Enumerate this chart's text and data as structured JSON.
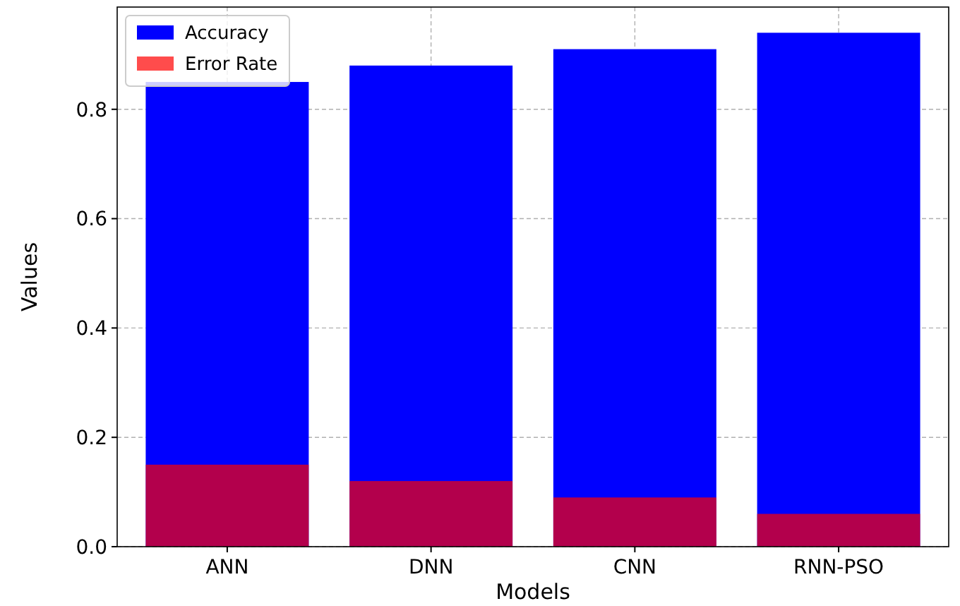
{
  "chart_data": {
    "type": "bar",
    "xlabel": "Models",
    "ylabel": "Values",
    "categories": [
      "ANN",
      "DNN",
      "CNN",
      "RNN-PSO"
    ],
    "series": [
      {
        "name": "Accuracy",
        "color": "#0000ff",
        "values": [
          0.85,
          0.88,
          0.91,
          0.94
        ]
      },
      {
        "name": "Error Rate",
        "color": "#ff0000",
        "values": [
          0.15,
          0.12,
          0.09,
          0.06
        ]
      }
    ],
    "ylim": [
      0,
      0.987
    ],
    "yticks": [
      {
        "value": 0,
        "label": "0.0"
      },
      {
        "value": 0.2,
        "label": "0.2"
      },
      {
        "value": 0.4,
        "label": "0.4"
      },
      {
        "value": 0.6,
        "label": "0.6"
      },
      {
        "value": 0.8,
        "label": "0.8"
      }
    ],
    "grid": true,
    "legend": "top left"
  }
}
